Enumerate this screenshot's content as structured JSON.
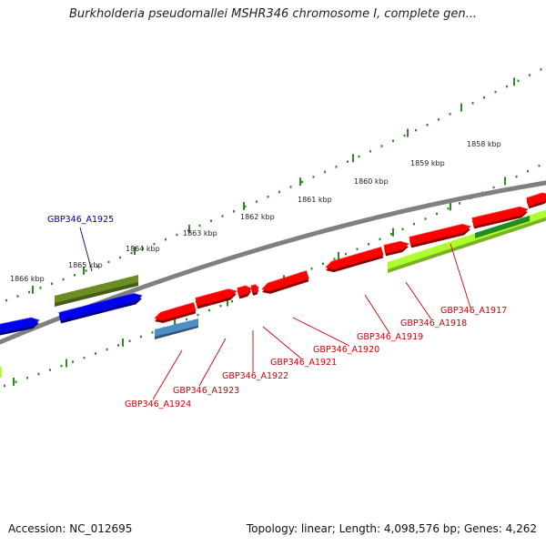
{
  "title": "Burkholderia pseudomallei MSHR346 chromosome I, complete gen...",
  "footer": {
    "accession": "Accession: NC_012695",
    "topology": "Topology: linear; Length: 4,098,576 bp; Genes: 4,262"
  },
  "colors": {
    "background": "#ffffff",
    "backbone": "#808080",
    "tick": "#2e8b22",
    "gene_red": "#ff0000",
    "gene_blue": "#0000ee",
    "gene_steelblue": "#4f8dc4",
    "gene_olive": "#6b8e23",
    "gene_lime": "#adff2f",
    "gene_darkgreen": "#228b22",
    "label_red": "#cc0000",
    "label_navy": "#000099"
  },
  "ticks": [
    {
      "label": "1858 kbp"
    },
    {
      "label": "1859 kbp"
    },
    {
      "label": "1860 kbp"
    },
    {
      "label": "1861 kbp"
    },
    {
      "label": "1862 kbp"
    },
    {
      "label": "1863 kbp"
    },
    {
      "label": "1864 kbp"
    },
    {
      "label": "1865 kbp"
    },
    {
      "label": "1866 kbp"
    }
  ],
  "genes": [
    {
      "name": "GBP346_A1917",
      "color": "red"
    },
    {
      "name": "GBP346_A1918",
      "color": "red"
    },
    {
      "name": "GBP346_A1919",
      "color": "red"
    },
    {
      "name": "GBP346_A1920",
      "color": "red"
    },
    {
      "name": "GBP346_A1921",
      "color": "red"
    },
    {
      "name": "GBP346_A1922",
      "color": "red"
    },
    {
      "name": "GBP346_A1923",
      "color": "red"
    },
    {
      "name": "GBP346_A1924",
      "color": "red"
    },
    {
      "name": "GBP346_A1925",
      "color": "navy"
    }
  ]
}
